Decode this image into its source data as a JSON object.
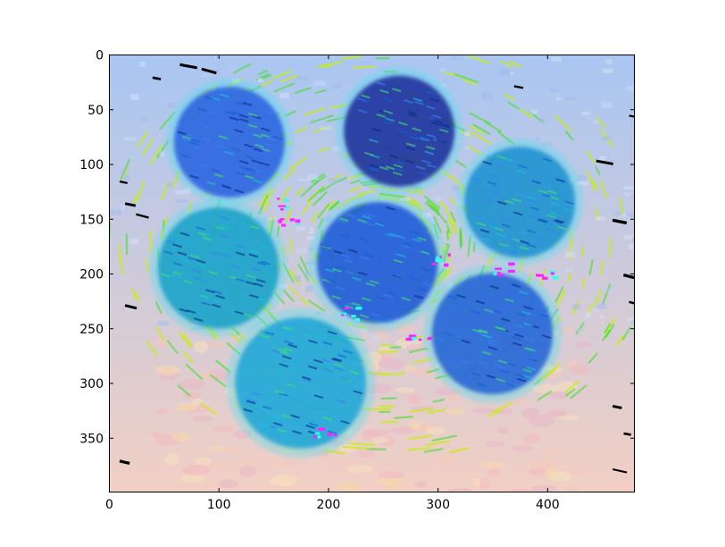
{
  "figure": {
    "title": "",
    "xlabel": "",
    "ylabel": "",
    "x_range": [
      0,
      480
    ],
    "y_range": [
      400,
      0
    ],
    "x_ticks": [
      {
        "value": 0,
        "label": "0"
      },
      {
        "value": 100,
        "label": "100"
      },
      {
        "value": 200,
        "label": "200"
      },
      {
        "value": 300,
        "label": "300"
      },
      {
        "value": 400,
        "label": "400"
      }
    ],
    "y_ticks": [
      {
        "value": 0,
        "label": "0"
      },
      {
        "value": 50,
        "label": "50"
      },
      {
        "value": 100,
        "label": "100"
      },
      {
        "value": 150,
        "label": "150"
      },
      {
        "value": 200,
        "label": "200"
      },
      {
        "value": 250,
        "label": "250"
      },
      {
        "value": 300,
        "label": "300"
      },
      {
        "value": 350,
        "label": "350"
      }
    ],
    "grid": false
  },
  "image_content": {
    "blobs": [
      {
        "name": "blob-top-left",
        "cx": 110,
        "cy": 80,
        "r": 55,
        "color": "#2a5fe0"
      },
      {
        "name": "blob-top-center",
        "cx": 265,
        "cy": 70,
        "r": 55,
        "color": "#1a2a9a"
      },
      {
        "name": "blob-top-right",
        "cx": 375,
        "cy": 135,
        "r": 55,
        "color": "#1a8fd0"
      },
      {
        "name": "blob-left",
        "cx": 100,
        "cy": 195,
        "r": 60,
        "color": "#17a0c8"
      },
      {
        "name": "blob-center",
        "cx": 245,
        "cy": 190,
        "r": 60,
        "color": "#1b55d8"
      },
      {
        "name": "blob-center-right",
        "cx": 350,
        "cy": 255,
        "r": 60,
        "color": "#2060d8"
      },
      {
        "name": "blob-bottom-left",
        "cx": 175,
        "cy": 300,
        "r": 65,
        "color": "#1fa6d8"
      }
    ],
    "colors": {
      "background_top": "#a9c6f2",
      "background_bottom": "#f2cfc4",
      "stroke_yellow": "#c8ee10",
      "stroke_green": "#44e030",
      "accent_magenta": "#ff22ff",
      "accent_cyan": "#30ffee",
      "speck_black": "#000000"
    }
  }
}
